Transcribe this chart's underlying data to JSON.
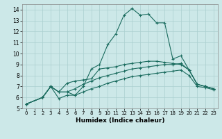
{
  "title": "",
  "xlabel": "Humidex (Indice chaleur)",
  "ylabel": "",
  "background_color": "#cce8e8",
  "grid_color": "#aacfcf",
  "line_color": "#1a6b5e",
  "xlim": [
    -0.5,
    23.5
  ],
  "ylim": [
    5,
    14.5
  ],
  "xticks": [
    0,
    1,
    2,
    3,
    4,
    5,
    6,
    7,
    8,
    9,
    10,
    11,
    12,
    13,
    14,
    15,
    16,
    17,
    18,
    19,
    20,
    21,
    22,
    23
  ],
  "yticks": [
    5,
    6,
    7,
    8,
    9,
    10,
    11,
    12,
    13,
    14
  ],
  "series": [
    {
      "x": [
        0,
        2,
        3,
        4,
        5,
        6,
        7,
        8,
        9,
        10,
        11,
        12,
        13,
        14,
        15,
        16,
        17,
        18,
        19,
        20,
        21,
        22,
        23
      ],
      "y": [
        5.4,
        6.0,
        7.0,
        6.5,
        6.5,
        6.2,
        7.0,
        8.6,
        9.0,
        10.8,
        11.8,
        13.5,
        14.1,
        13.5,
        13.6,
        12.8,
        12.8,
        9.5,
        9.8,
        8.5,
        7.2,
        7.0,
        6.8
      ]
    },
    {
      "x": [
        0,
        2,
        3,
        4,
        5,
        6,
        7,
        8,
        9,
        10,
        11,
        12,
        13,
        14,
        15,
        16,
        17,
        18,
        19,
        20,
        21,
        22,
        23
      ],
      "y": [
        5.4,
        6.0,
        7.0,
        6.5,
        7.3,
        7.5,
        7.6,
        7.7,
        8.6,
        8.7,
        8.8,
        9.0,
        9.1,
        9.2,
        9.3,
        9.3,
        9.2,
        9.1,
        9.0,
        8.5,
        7.2,
        7.0,
        6.8
      ]
    },
    {
      "x": [
        0,
        2,
        3,
        4,
        5,
        6,
        7,
        8,
        9,
        10,
        11,
        12,
        13,
        14,
        15,
        16,
        17,
        18,
        19,
        20,
        21,
        22,
        23
      ],
      "y": [
        5.4,
        6.0,
        7.0,
        6.5,
        6.5,
        6.8,
        7.2,
        7.5,
        7.8,
        8.0,
        8.2,
        8.4,
        8.6,
        8.7,
        8.8,
        8.9,
        9.0,
        9.0,
        9.1,
        8.5,
        7.2,
        7.0,
        6.8
      ]
    },
    {
      "x": [
        0,
        2,
        3,
        4,
        5,
        6,
        7,
        8,
        9,
        10,
        11,
        12,
        13,
        14,
        15,
        16,
        17,
        18,
        19,
        20,
        21,
        22,
        23
      ],
      "y": [
        5.4,
        6.0,
        7.0,
        5.9,
        6.2,
        6.2,
        6.5,
        6.8,
        7.0,
        7.3,
        7.5,
        7.7,
        7.9,
        8.0,
        8.1,
        8.2,
        8.3,
        8.4,
        8.5,
        8.0,
        7.0,
        6.9,
        6.7
      ]
    }
  ]
}
